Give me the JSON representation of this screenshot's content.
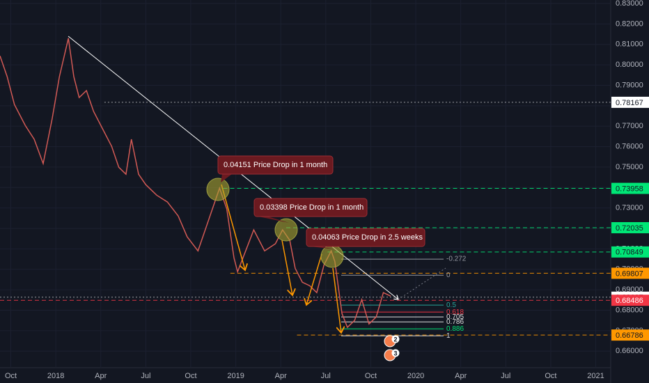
{
  "chart_data": {
    "type": "line",
    "color": "#d35a55",
    "x": [
      2017.69,
      2017.73,
      2017.77,
      2017.83,
      2017.88,
      2017.93,
      2017.98,
      2018.02,
      2018.07,
      2018.1,
      2018.13,
      2018.17,
      2018.21,
      2018.27,
      2018.31,
      2018.35,
      2018.39,
      2018.42,
      2018.46,
      2018.5,
      2018.56,
      2018.62,
      2018.68,
      2018.73,
      2018.79,
      2018.83,
      2018.87,
      2018.91,
      2018.95,
      2018.99,
      2019.01,
      2019.04,
      2019.1,
      2019.16,
      2019.22,
      2019.26,
      2019.3,
      2019.33,
      2019.37,
      2019.41,
      2019.45,
      2019.49,
      2019.53,
      2019.55,
      2019.59,
      2019.62,
      2019.66,
      2019.7,
      2019.74,
      2019.78,
      2019.82,
      2019.86
    ],
    "values": [
      0.8044,
      0.7942,
      0.7806,
      0.7704,
      0.7636,
      0.7517,
      0.7738,
      0.7942,
      0.813,
      0.7942,
      0.784,
      0.7874,
      0.7772,
      0.767,
      0.7602,
      0.7499,
      0.7465,
      0.7636,
      0.7465,
      0.7414,
      0.7363,
      0.7329,
      0.7261,
      0.7159,
      0.709,
      0.7193,
      0.7295,
      0.7397,
      0.7295,
      0.7056,
      0.6988,
      0.7056,
      0.7193,
      0.709,
      0.7125,
      0.7193,
      0.7142,
      0.7005,
      0.6937,
      0.692,
      0.6886,
      0.7022,
      0.709,
      0.7039,
      0.6784,
      0.6716,
      0.675,
      0.6852,
      0.6733,
      0.6767,
      0.6886,
      0.6869
    ],
    "xlim": [
      2017.69,
      2021.083
    ],
    "ylim": [
      0.6519,
      0.8317
    ],
    "xticks": [
      {
        "value": 2017.75,
        "label": "Oct"
      },
      2018,
      {
        "value": 2018.25,
        "label": "Apr"
      },
      {
        "value": 2018.5,
        "label": "Jul"
      },
      {
        "value": 2018.75,
        "label": "Oct"
      },
      2019,
      {
        "value": 2019.25,
        "label": "Apr"
      },
      {
        "value": 2019.5,
        "label": "Jul"
      },
      {
        "value": 2019.75,
        "label": "Oct"
      },
      2020,
      {
        "value": 2020.25,
        "label": "Apr"
      },
      {
        "value": 2020.5,
        "label": "Jul"
      },
      {
        "value": 2020.75,
        "label": "Oct"
      },
      2021
    ],
    "yticks": [
      {
        "value": 0.66,
        "label": "0.66000"
      },
      {
        "value": 0.67,
        "label": "0.67000"
      },
      {
        "value": 0.68,
        "label": "0.68000"
      },
      {
        "value": 0.69,
        "label": "0.69000"
      },
      {
        "value": 0.7,
        "label": "0.70000"
      },
      {
        "value": 0.71,
        "label": "0.71000"
      },
      {
        "value": 0.72,
        "label": "0.72000"
      },
      {
        "value": 0.73,
        "label": "0.73000"
      },
      {
        "value": 0.74,
        "label": "0.74000"
      },
      {
        "value": 0.75,
        "label": "0.75000"
      },
      {
        "value": 0.76,
        "label": "0.76000"
      },
      {
        "value": 0.77,
        "label": "0.77000"
      },
      {
        "value": 0.78,
        "label": "0.78000"
      },
      {
        "value": 0.79,
        "label": "0.79000"
      },
      {
        "value": 0.8,
        "label": "0.80000"
      },
      {
        "value": 0.81,
        "label": "0.81000"
      },
      {
        "value": 0.82,
        "label": "0.82000"
      },
      {
        "value": 0.83,
        "label": "0.83000"
      }
    ],
    "grid": true,
    "levels": [
      {
        "value": 0.78167,
        "color": "#ffffff",
        "start": 2018.27
      },
      {
        "value": 0.73958,
        "color": "#00e676",
        "start": 2018.93
      },
      {
        "value": 0.72035,
        "color": "#00e676",
        "start": 2019.28
      },
      {
        "value": 0.70849,
        "color": "#00e676",
        "start": 2019.51
      },
      {
        "value": 0.69807,
        "color": "#ff9800",
        "start": 2018.97
      },
      {
        "value": 0.68637,
        "color": "#ffffff",
        "start": 2017.69
      },
      {
        "value": 0.68486,
        "color": "#f23645",
        "start": 2017.69
      },
      {
        "value": 0.66786,
        "color": "#ff9800",
        "start": 2019.34
      }
    ],
    "fib": [
      {
        "level": -0.272,
        "price": 0.705,
        "color": "#9598a1"
      },
      {
        "level": 0,
        "price": 0.6971,
        "color": "#9598a1"
      },
      {
        "level": 0.5,
        "price": 0.6825,
        "color": "#26a69a"
      },
      {
        "level": 0.618,
        "price": 0.6791,
        "color": "#f23645"
      },
      {
        "level": 0.705,
        "price": 0.6767,
        "color": "#e0e0e0"
      },
      {
        "level": 0.786,
        "price": 0.6743,
        "color": "#e0e0e0"
      },
      {
        "level": 0.886,
        "price": 0.6709,
        "color": "#00e676"
      },
      {
        "level": 1,
        "price": 0.6675,
        "color": "#e0e0e0"
      }
    ],
    "annotations": [
      "0.04151 Price Drop in 1 month",
      "0.03398 Price Drop in 1 month",
      "0.04063 Price Drop in 2.5 weeks"
    ],
    "events": [
      "2",
      "3"
    ]
  }
}
